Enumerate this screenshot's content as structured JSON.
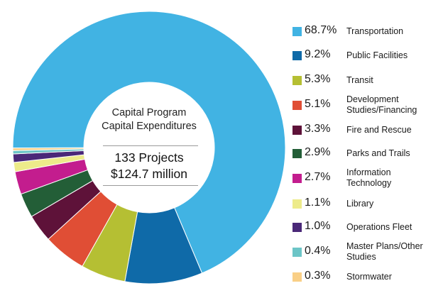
{
  "chart_data": {
    "type": "pie",
    "variant": "donut",
    "title": "Capital Program Capital Expenditures",
    "center_label": {
      "title_lines": [
        "Capital Program",
        "Capital Expenditures"
      ],
      "stat_lines": [
        "133 Projects",
        "$124.7 million"
      ]
    },
    "legend_position": "right",
    "slices": [
      {
        "label": "Transportation",
        "pct_label": "68.7%",
        "value": 68.7,
        "color": "#41B3E3"
      },
      {
        "label": "Public Facilities",
        "pct_label": "9.2%",
        "value": 9.2,
        "color": "#0F6AA8"
      },
      {
        "label": "Transit",
        "pct_label": "5.3%",
        "value": 5.3,
        "color": "#B5BF33"
      },
      {
        "label": "Development Studies/Financing",
        "label_lines": [
          "Development",
          "Studies/Financing"
        ],
        "pct_label": "5.1%",
        "value": 5.1,
        "color": "#E04E35"
      },
      {
        "label": "Fire and Rescue",
        "pct_label": "3.3%",
        "value": 3.3,
        "color": "#5E1239"
      },
      {
        "label": "Parks and Trails",
        "pct_label": "2.9%",
        "value": 2.9,
        "color": "#235E37"
      },
      {
        "label": "Information Technology",
        "label_lines": [
          "Information",
          "Technology"
        ],
        "pct_label": "2.7%",
        "value": 2.7,
        "color": "#C31D8E"
      },
      {
        "label": "Library",
        "pct_label": "1.1%",
        "value": 1.1,
        "color": "#EDEB8A"
      },
      {
        "label": "Operations Fleet",
        "pct_label": "1.0%",
        "value": 1.0,
        "color": "#4A2878"
      },
      {
        "label": "Master Plans/Other Studies",
        "label_lines": [
          "Master Plans/Other",
          "Studies"
        ],
        "pct_label": "0.4%",
        "value": 0.4,
        "color": "#6CC5C7"
      },
      {
        "label": "Stormwater",
        "pct_label": "0.3%",
        "value": 0.3,
        "color": "#F9CF86"
      }
    ]
  }
}
